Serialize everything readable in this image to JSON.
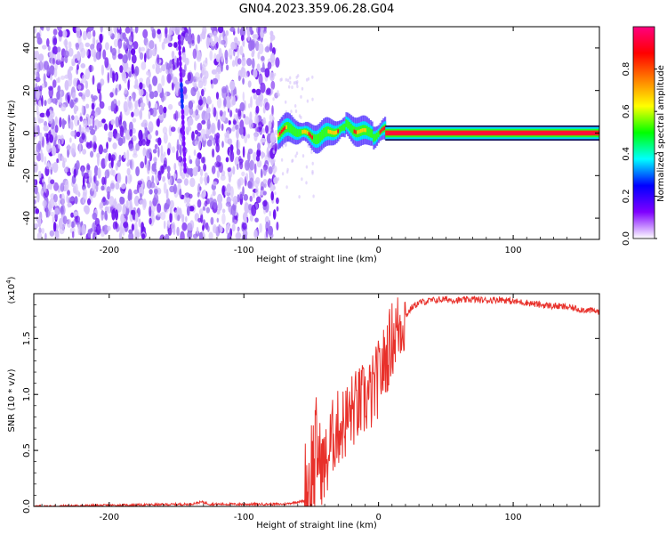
{
  "figure": {
    "title": "GN04.2023.359.06.28.G04"
  },
  "chart_data": [
    {
      "type": "heatmap",
      "name": "spectrogram",
      "xlabel": "Height of straight line (km)",
      "ylabel": "Frequency (Hz)",
      "xlim": [
        -256,
        164
      ],
      "ylim": [
        -50,
        50
      ],
      "xticks": [
        -200,
        -100,
        0,
        100
      ],
      "yticks": [
        -40,
        -20,
        0,
        20,
        40
      ],
      "colorbar": {
        "label": "Normalized spectral amplitude",
        "range": [
          0,
          1
        ],
        "ticks": [
          "0.0",
          "0.2",
          "0.4",
          "0.6",
          "0.8"
        ],
        "colormap": [
          "#ffffff",
          "#7f00ff",
          "#0000ff",
          "#00ffff",
          "#00ff00",
          "#ffff00",
          "#ff8000",
          "#ff0000",
          "#ff0080"
        ]
      },
      "regions": [
        {
          "description": "noise",
          "x_range": [
            -256,
            -75
          ],
          "freq_range": [
            -50,
            50
          ],
          "amplitude_max": 0.15
        },
        {
          "description": "signal",
          "x_range": [
            -75,
            5
          ],
          "center_freq": 0,
          "amplitude_max": 0.9
        },
        {
          "description": "steady signal",
          "x_range": [
            5,
            164
          ],
          "center_freq": 0,
          "amplitude": 0.95
        }
      ]
    },
    {
      "type": "line",
      "name": "snr",
      "xlabel": "Height of straight line (km)",
      "ylabel": "SNR (10 * v/v)",
      "y_multiplier": "(x10",
      "y_multiplier_exp": "4",
      "xlim": [
        -256,
        164
      ],
      "ylim": [
        0,
        1.9
      ],
      "xticks": [
        -200,
        -100,
        0,
        100
      ],
      "yticks": [
        "0.0",
        "0.5",
        "1.0",
        "1.5"
      ],
      "color": "#e8302a",
      "series": [
        {
          "x": [
            -256,
            -200,
            -140,
            -131,
            -125,
            -100,
            -70,
            -55,
            -50,
            -45,
            -42,
            -38,
            -35,
            -30,
            -25,
            -20,
            -15,
            -10,
            -5,
            0,
            5,
            10,
            15,
            20,
            25,
            30,
            40,
            50,
            60,
            70,
            80,
            90,
            100,
            110,
            120,
            130,
            140,
            150,
            164
          ],
          "y": [
            0.0,
            0.01,
            0.02,
            0.04,
            0.02,
            0.02,
            0.02,
            0.05,
            0.3,
            0.5,
            0.35,
            0.4,
            0.6,
            0.7,
            0.75,
            0.85,
            0.9,
            0.95,
            1.0,
            1.15,
            1.3,
            1.5,
            1.6,
            1.7,
            1.78,
            1.82,
            1.84,
            1.85,
            1.84,
            1.85,
            1.84,
            1.85,
            1.83,
            1.82,
            1.8,
            1.79,
            1.78,
            1.76,
            1.74
          ]
        }
      ]
    }
  ]
}
